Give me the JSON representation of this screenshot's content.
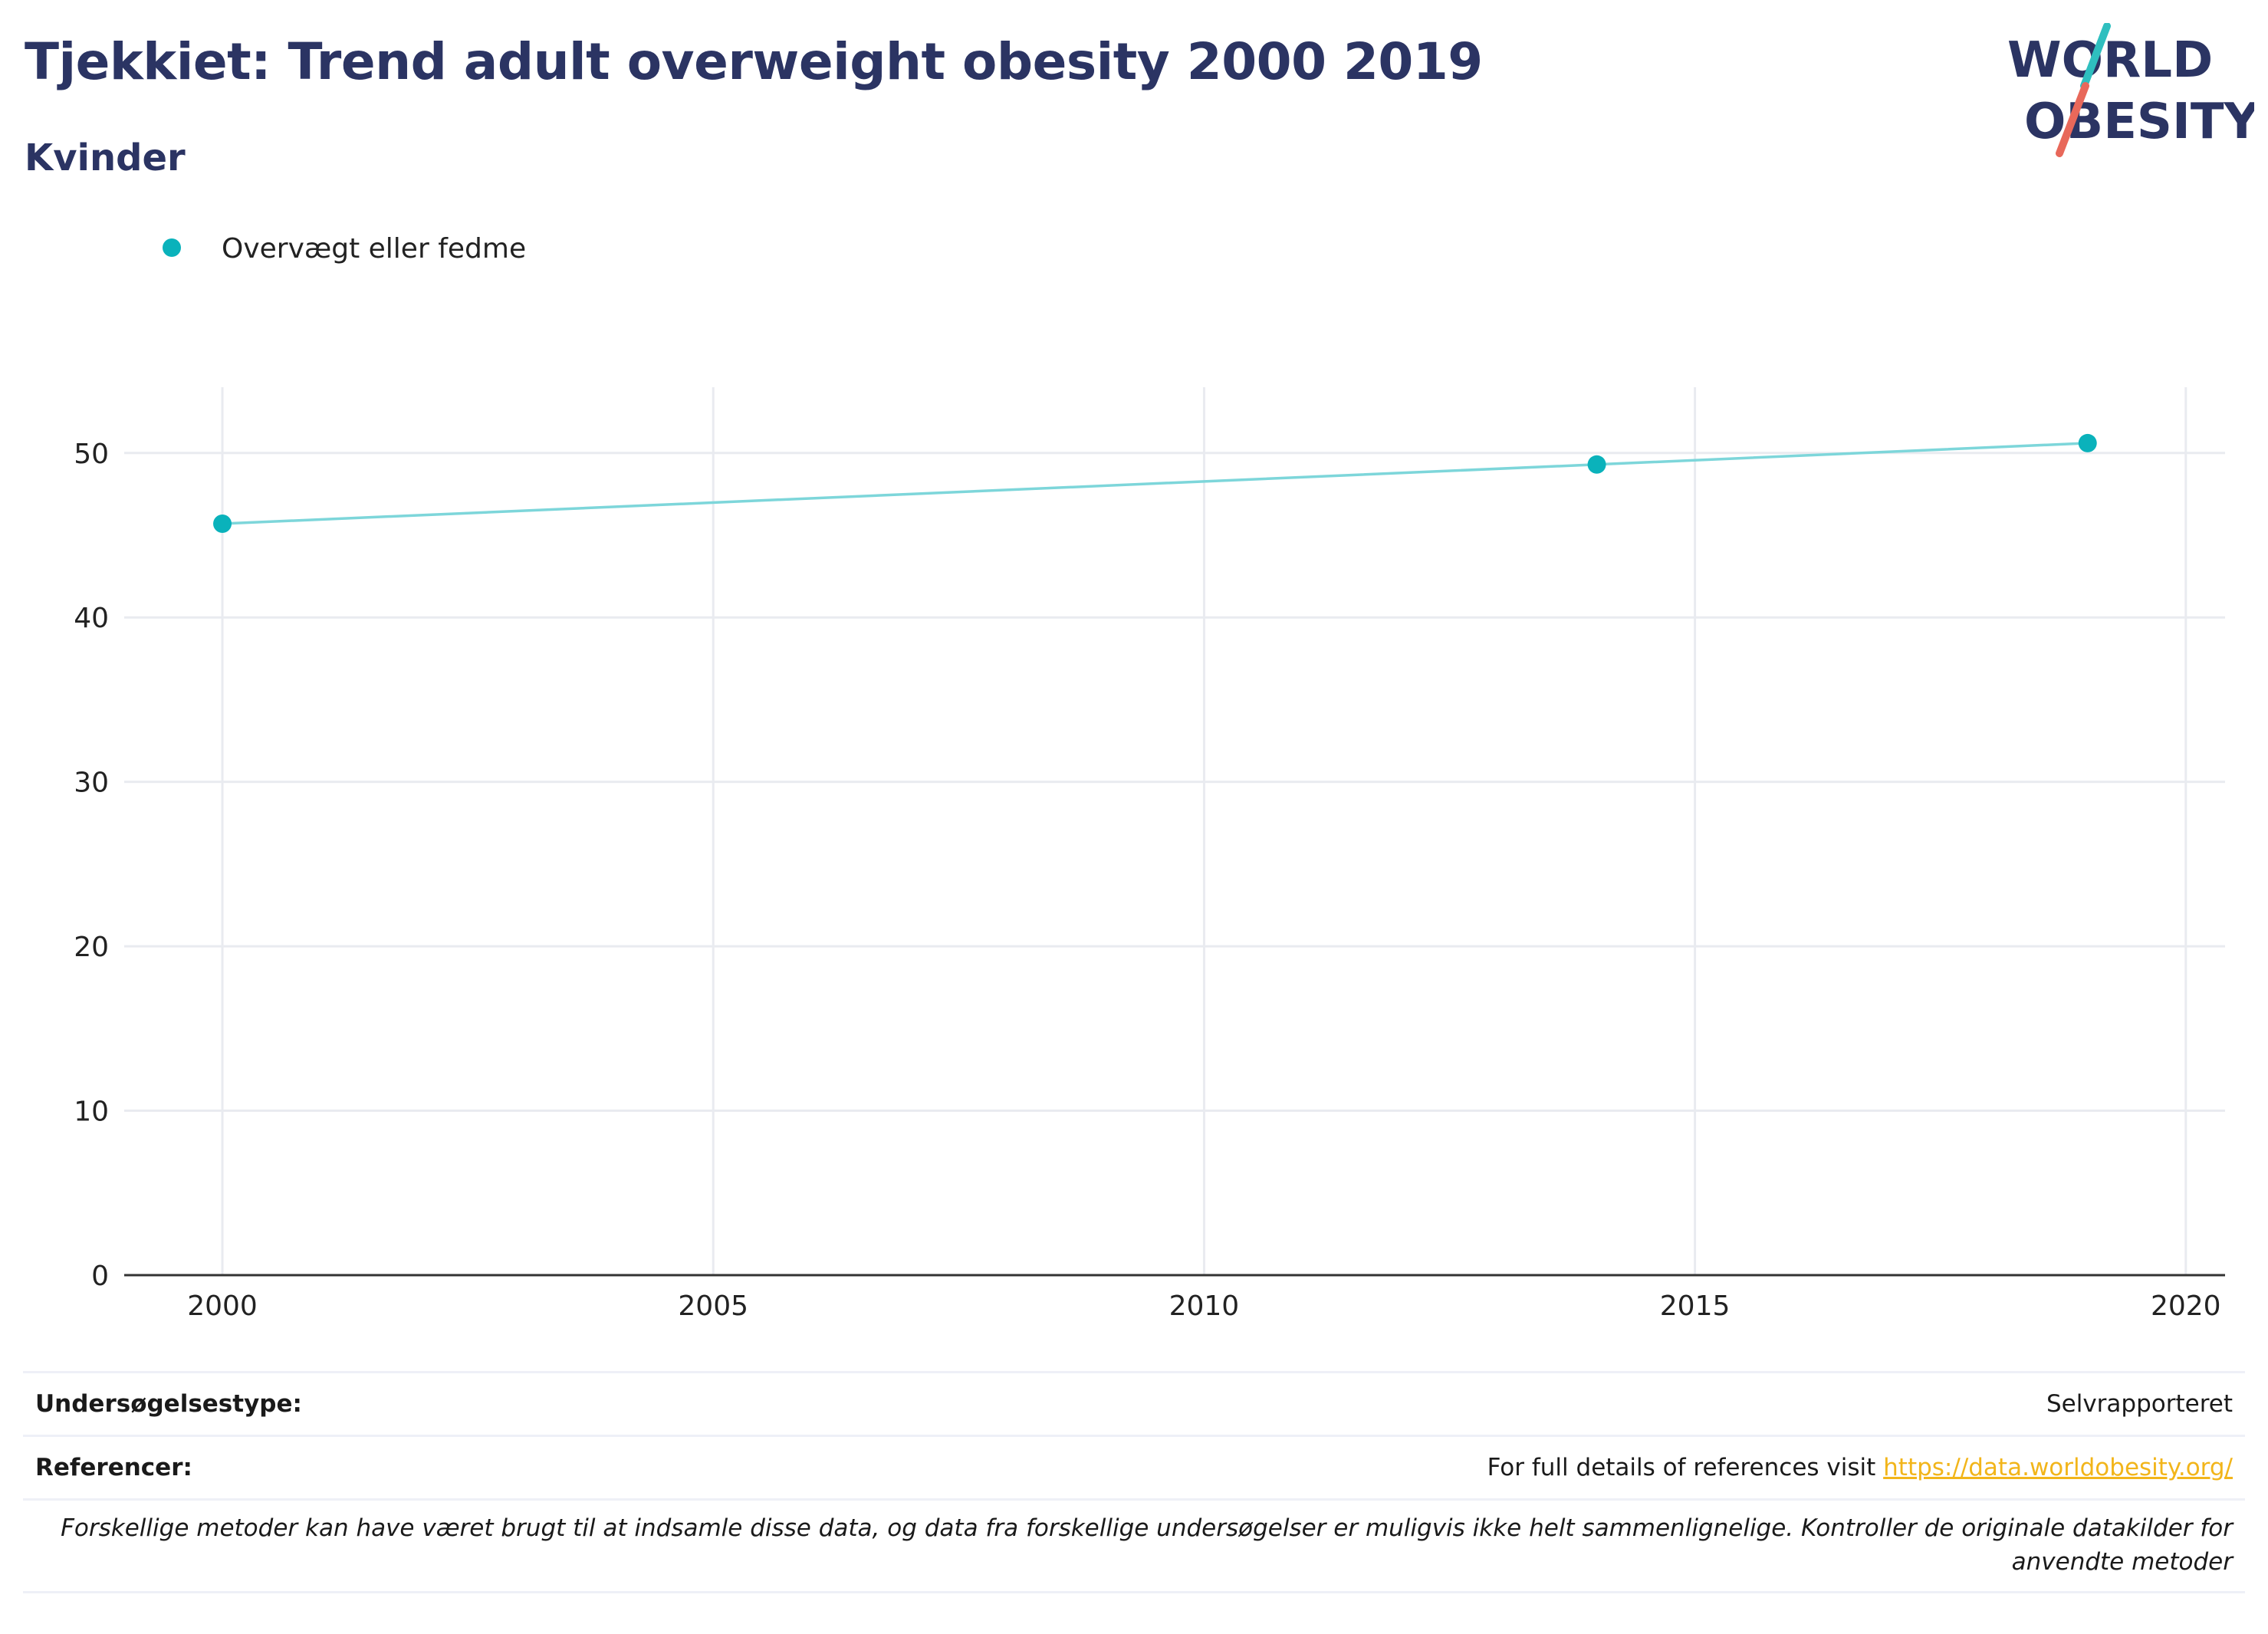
{
  "header": {
    "title": "Tjekkiet: Trend adult overweight obesity 2000 2019",
    "subtitle": "Kvinder"
  },
  "logo": {
    "line1": "WORLD",
    "line2": "OBESITY",
    "slash_colors": [
      "#2fbfbf",
      "#e8685a"
    ]
  },
  "chart_data": {
    "type": "line",
    "title": "Tjekkiet: Trend adult overweight obesity 2000 2019",
    "subtitle": "Kvinder",
    "xlabel": "",
    "ylabel": "",
    "xlim": [
      1999,
      2020.4
    ],
    "ylim": [
      0,
      54
    ],
    "x_ticks": [
      2000,
      2005,
      2010,
      2015,
      2020
    ],
    "y_ticks": [
      0,
      10,
      20,
      30,
      40,
      50
    ],
    "grid": true,
    "legend_position": "top-left",
    "series": [
      {
        "name": "Overvægt eller fedme",
        "color": "#0ab2bb",
        "line_color": "#7dd6da",
        "x": [
          2000,
          2014,
          2019
        ],
        "y": [
          45.7,
          49.3,
          50.6
        ]
      }
    ]
  },
  "footer": {
    "survey_label": "Undersøgelsestype:",
    "survey_value": "Selvrapporteret",
    "ref_label": "Referencer:",
    "ref_text": "For full details of references visit ",
    "ref_link": "https://data.worldobesity.org/",
    "note": "Forskellige metoder kan have været brugt til at indsamle disse data, og data fra forskellige undersøgelser er muligvis ikke helt sammenlignelige. Kontroller de originale datakilder for anvendte metoder"
  }
}
